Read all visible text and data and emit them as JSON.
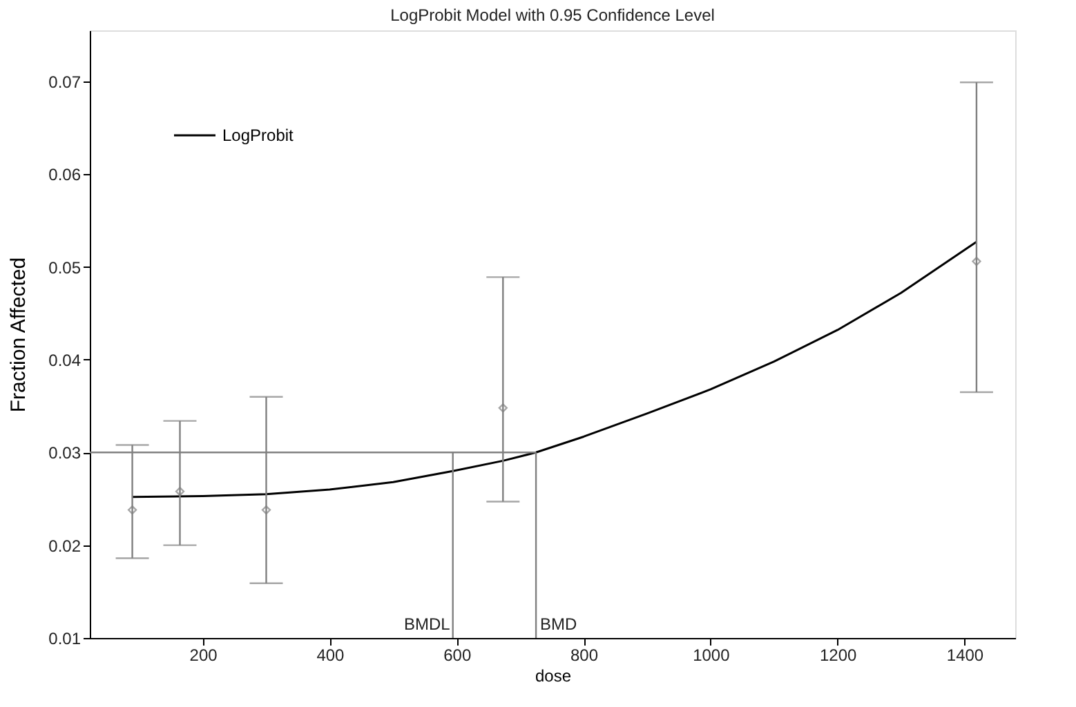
{
  "chart_data": {
    "type": "line",
    "title": "LogProbit Model with 0.95 Confidence Level",
    "xlabel": "dose",
    "ylabel": "Fraction Affected",
    "xlim": [
      22,
      1480
    ],
    "ylim": [
      0.01,
      0.0755
    ],
    "xticks": [
      200,
      400,
      600,
      800,
      1000,
      1200,
      1400
    ],
    "yticks": [
      0.01,
      0.02,
      0.03,
      0.04,
      0.05,
      0.06,
      0.07
    ],
    "grid": false,
    "legend": "top left",
    "series": [
      {
        "name": "LogProbit",
        "color": "#000000",
        "line_style": "solid",
        "marker": "none",
        "x": [
          89,
          200,
          300,
          400,
          500,
          594,
          673,
          725,
          800,
          900,
          1000,
          1100,
          1200,
          1300,
          1419
        ],
        "values": [
          0.0252,
          0.0253,
          0.0255,
          0.026,
          0.0268,
          0.028,
          0.0291,
          0.03,
          0.0317,
          0.0342,
          0.0368,
          0.0398,
          0.0432,
          0.0472,
          0.0527
        ]
      },
      {
        "type": "scatter",
        "color": "#808080",
        "marker": "diamond",
        "x": [
          89,
          164,
          300,
          673,
          1419
        ],
        "values": [
          0.0238,
          0.0258,
          0.0238,
          0.0348,
          0.0506
        ],
        "errors": [
          [
            0.0186,
            0.0308
          ],
          [
            0.02,
            0.0334
          ],
          [
            0.0159,
            0.036
          ],
          [
            0.0247,
            0.0489
          ],
          [
            0.0365,
            0.0699
          ]
        ]
      }
    ],
    "ref_lines": [
      {
        "axis": "y",
        "value": 0.03,
        "label": null,
        "color": "#808080"
      },
      {
        "axis": "x",
        "value": 594,
        "label": "BMDL",
        "color": "#808080"
      },
      {
        "axis": "x",
        "value": 725,
        "label": "BMD",
        "color": "#808080"
      }
    ]
  }
}
